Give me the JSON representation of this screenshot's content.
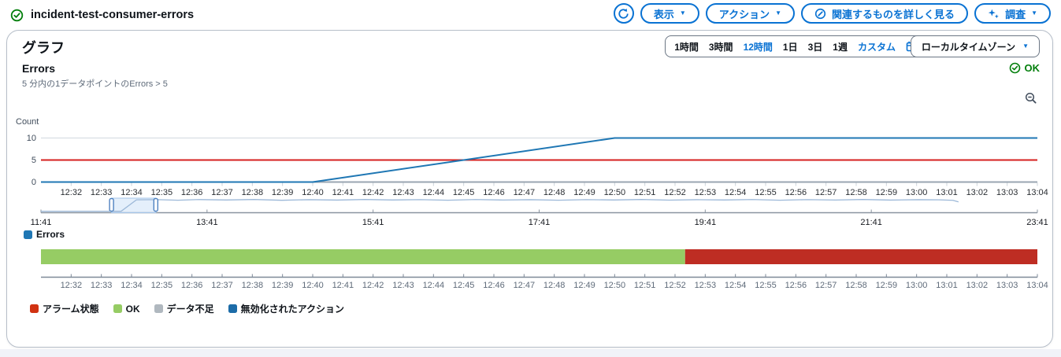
{
  "header": {
    "title": "incident-test-consumer-errors",
    "status_icon": "check-circle",
    "actions": {
      "refresh_icon": "refresh-icon",
      "view_label": "表示",
      "actions_label": "アクション",
      "related_label": "関連するものを詳しく見る",
      "investigate_label": "調査"
    }
  },
  "panel": {
    "title": "グラフ",
    "time_ranges": [
      "1時間",
      "3時間",
      "12時間",
      "1日",
      "3日",
      "1週"
    ],
    "selected_range": "12時間",
    "custom_label": "カスタム",
    "timezone_label": "ローカルタイムゾーン",
    "metric": {
      "name": "Errors",
      "condition": "5 分内の1データポイントのErrors > 5",
      "status": "OK"
    }
  },
  "colors": {
    "accent_blue": "#0972d3",
    "success_green": "#037f0c",
    "series_blue": "#1f77b4",
    "threshold_red": "#d6201f",
    "state_ok_green": "#96cc64",
    "state_alarm_red": "#be2d23",
    "legend_alarm_red": "#d13212",
    "legend_insufficient_gray": "#b0b8bf",
    "legend_disabled_blue": "#1c6ca8",
    "overview_line": "#9cb8d8"
  },
  "chart_data": {
    "type": "line",
    "title": "Errors",
    "ylabel": "Count",
    "yticks": [
      0,
      5,
      10
    ],
    "ylim": [
      0,
      11.5
    ],
    "x_domain": [
      "12:31",
      "13:04"
    ],
    "x_ticks": [
      "12:32",
      "12:33",
      "12:34",
      "12:35",
      "12:36",
      "12:37",
      "12:38",
      "12:39",
      "12:40",
      "12:41",
      "12:42",
      "12:43",
      "12:44",
      "12:45",
      "12:46",
      "12:47",
      "12:48",
      "12:49",
      "12:50",
      "12:51",
      "12:52",
      "12:53",
      "12:54",
      "12:55",
      "12:56",
      "12:57",
      "12:58",
      "12:59",
      "13:00",
      "13:01",
      "13:02",
      "13:03",
      "13:04"
    ],
    "threshold": {
      "value": 5,
      "color": "#d6201f"
    },
    "series": [
      {
        "name": "Errors",
        "color": "#1f77b4",
        "points": [
          [
            "12:31",
            0
          ],
          [
            "12:40",
            0
          ],
          [
            "12:50",
            10
          ],
          [
            "13:04",
            10
          ]
        ]
      }
    ],
    "overview": {
      "x_domain": [
        "11:41",
        "23:41"
      ],
      "x_ticks": [
        "11:41",
        "13:41",
        "15:41",
        "17:41",
        "19:41",
        "21:41",
        "23:41"
      ],
      "selection": [
        "12:32",
        "13:04"
      ],
      "line_color": "#9cb8d8",
      "points": [
        [
          "11:41",
          0.25
        ],
        [
          "12:20",
          0.25
        ],
        [
          "12:39",
          0.3
        ],
        [
          "12:50",
          9.9
        ],
        [
          "13:05",
          10.1
        ],
        [
          "13:20",
          9.6
        ],
        [
          "13:35",
          10.15
        ],
        [
          "13:55",
          9.8
        ],
        [
          "14:15",
          10.2
        ],
        [
          "14:35",
          9.55
        ],
        [
          "14:55",
          10.05
        ],
        [
          "15:15",
          9.7
        ],
        [
          "15:35",
          10.2
        ],
        [
          "15:55",
          9.8
        ],
        [
          "16:15",
          10.1
        ],
        [
          "16:35",
          9.6
        ],
        [
          "16:55",
          10.15
        ],
        [
          "17:15",
          9.75
        ],
        [
          "17:35",
          10.05
        ],
        [
          "17:55",
          9.6
        ],
        [
          "18:15",
          10.1
        ],
        [
          "18:35",
          9.8
        ],
        [
          "18:55",
          10.2
        ],
        [
          "19:15",
          9.65
        ],
        [
          "19:35",
          10.05
        ],
        [
          "19:55",
          9.8
        ],
        [
          "20:15",
          10.15
        ],
        [
          "20:35",
          9.6
        ],
        [
          "20:55",
          10.1
        ],
        [
          "21:15",
          9.75
        ],
        [
          "21:35",
          10.2
        ],
        [
          "21:55",
          9.7
        ],
        [
          "22:15",
          10.05
        ],
        [
          "22:30",
          9.9
        ],
        [
          "22:40",
          9.5
        ],
        [
          "22:44",
          8.2
        ]
      ]
    },
    "state_timeline": {
      "x_domain": [
        "12:31",
        "13:04"
      ],
      "x_ticks": [
        "12:32",
        "12:33",
        "12:34",
        "12:35",
        "12:36",
        "12:37",
        "12:38",
        "12:39",
        "12:40",
        "12:41",
        "12:42",
        "12:43",
        "12:44",
        "12:45",
        "12:46",
        "12:47",
        "12:48",
        "12:49",
        "12:50",
        "12:51",
        "12:52",
        "12:53",
        "12:54",
        "12:55",
        "12:56",
        "12:57",
        "12:58",
        "12:59",
        "13:00",
        "13:01",
        "13:02",
        "13:03",
        "13:04"
      ],
      "segments": [
        {
          "state": "OK",
          "from": "12:31",
          "to": "12:52:20",
          "color": "#96cc64"
        },
        {
          "state": "ALARM",
          "from": "12:52:20",
          "to": "13:04",
          "color": "#be2d23"
        }
      ],
      "legend": [
        {
          "label": "アラーム状態",
          "color": "#d13212"
        },
        {
          "label": "OK",
          "color": "#96cc64"
        },
        {
          "label": "データ不足",
          "color": "#b0b8bf"
        },
        {
          "label": "無効化されたアクション",
          "color": "#1c6ca8"
        }
      ]
    }
  }
}
